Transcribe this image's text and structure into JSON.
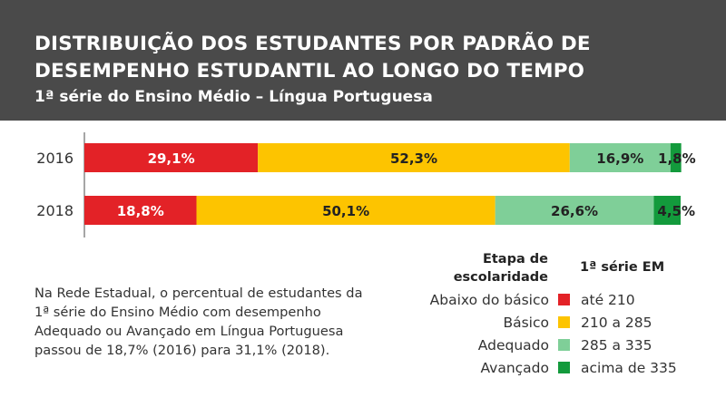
{
  "header": {
    "title": "DISTRIBUIÇÃO DOS ESTUDANTES POR PADRÃO DE DESEMPENHO ESTUDANTIL AO LONGO DO TEMPO",
    "subtitle": "1ª série do Ensino Médio – Língua Portuguesa"
  },
  "description": "Na Rede Estadual, o percentual de estudantes da 1ª série do Ensino Médio com desempenho Adequado ou Avançado em Língua Portuguesa passou de 18,7% (2016) para 31,1% (2018).",
  "legend": {
    "head_left": "Etapa de escolaridade",
    "head_right": "1ª série EM",
    "items": [
      {
        "label": "Abaixo do básico",
        "range": "até 210",
        "color": "#e32227"
      },
      {
        "label": "Básico",
        "range": "210 a 285",
        "color": "#fdc400"
      },
      {
        "label": "Adequado",
        "range": "285 a 335",
        "color": "#7fcf98"
      },
      {
        "label": "Avançado",
        "range": "acima de 335",
        "color": "#139a3c"
      }
    ]
  },
  "chart_data": {
    "type": "bar",
    "orientation": "horizontal",
    "stacked": true,
    "categories": [
      "2016",
      "2018"
    ],
    "series": [
      {
        "name": "Abaixo do básico",
        "color": "#e32227",
        "values": [
          29.1,
          18.8
        ],
        "labels": [
          "29,1%",
          "18,8%"
        ],
        "label_color": "#ffffff"
      },
      {
        "name": "Básico",
        "color": "#fdc400",
        "values": [
          52.3,
          50.1
        ],
        "labels": [
          "52,3%",
          "50,1%"
        ],
        "label_color": "#222222"
      },
      {
        "name": "Adequado",
        "color": "#7fcf98",
        "values": [
          16.9,
          26.6
        ],
        "labels": [
          "16,9%",
          "26,6%"
        ],
        "label_color": "#222222"
      },
      {
        "name": "Avançado",
        "color": "#139a3c",
        "values": [
          1.8,
          4.5
        ],
        "labels": [
          "1,8%",
          "4,5%"
        ],
        "label_color": "#222222"
      }
    ],
    "xlim": [
      0,
      100
    ],
    "grid": false,
    "legend_position": "bottom-right"
  }
}
